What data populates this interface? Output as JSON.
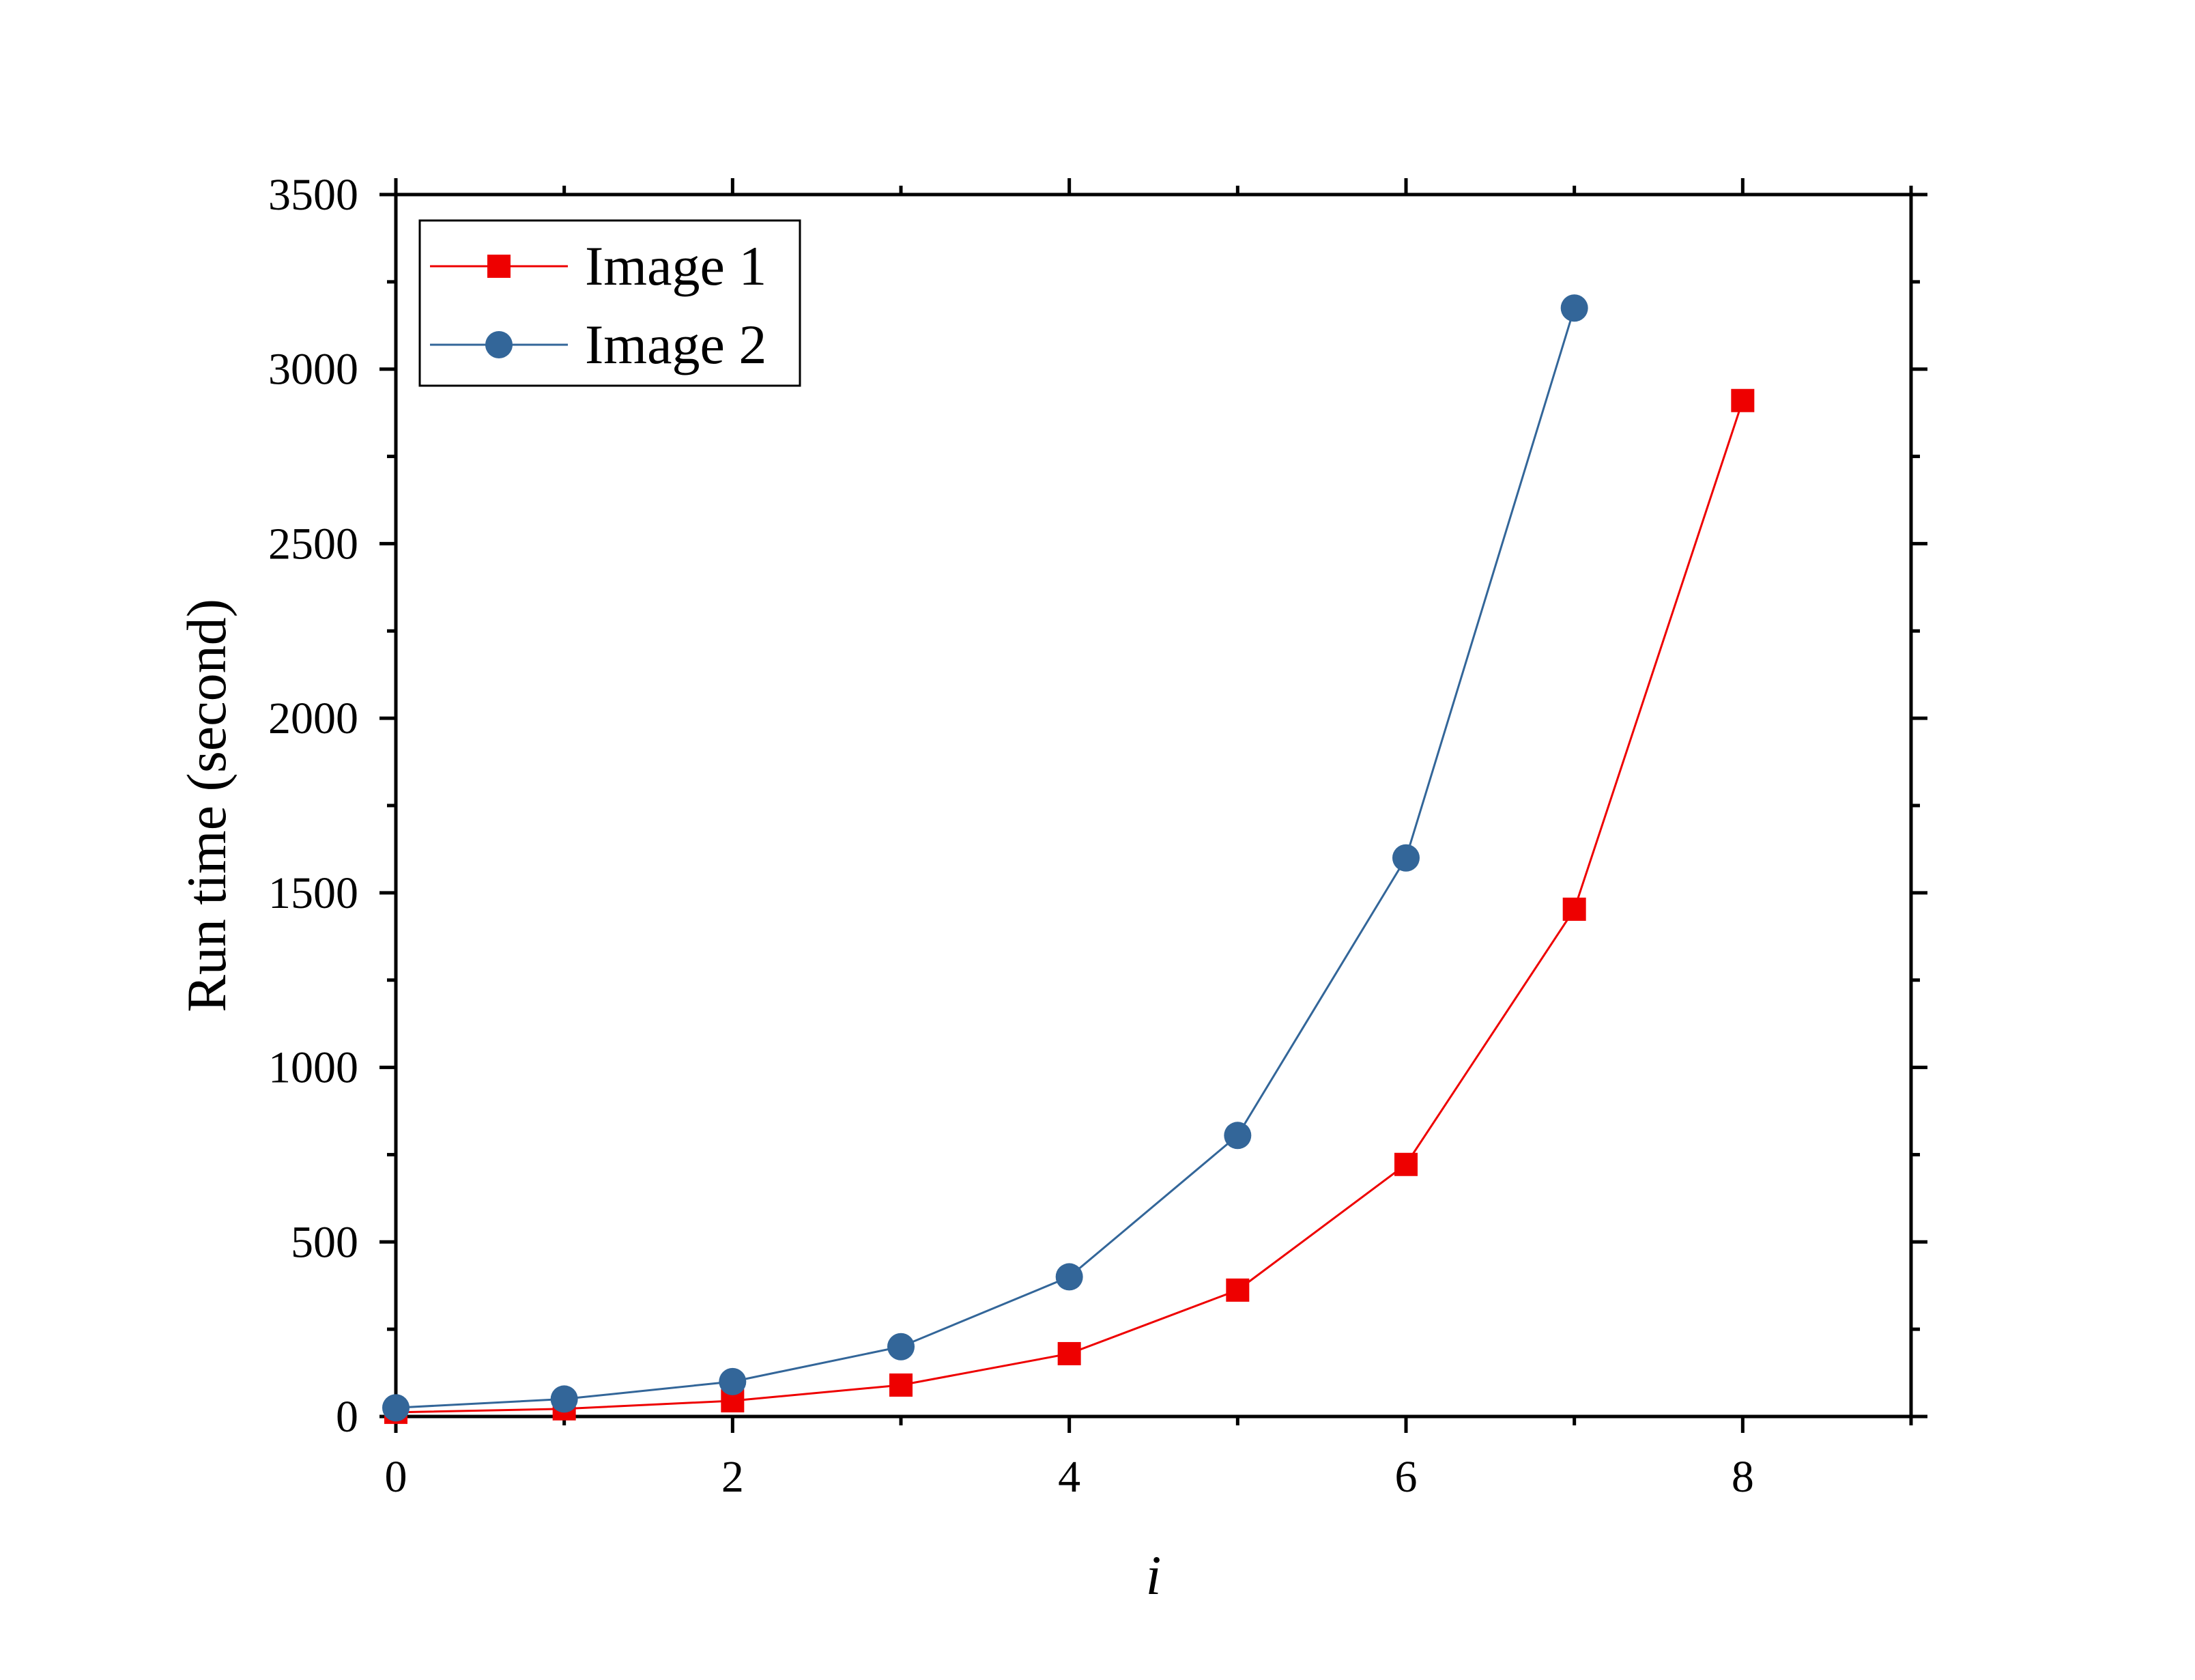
{
  "chart_data": {
    "type": "line",
    "xlabel": "i",
    "ylabel": "Run time (second)",
    "xlim": [
      0,
      9
    ],
    "ylim": [
      0,
      3500
    ],
    "xticks": [
      0,
      2,
      4,
      6,
      8
    ],
    "yticks": [
      0,
      500,
      1000,
      1500,
      2000,
      2500,
      3000,
      3500
    ],
    "grid": false,
    "legend": "top-left",
    "series": [
      {
        "name": "Image 1",
        "color": "#ee0000",
        "marker": "square",
        "x": [
          0,
          1,
          2,
          3,
          4,
          5,
          6,
          7,
          8
        ],
        "values": [
          12,
          22,
          45,
          90,
          180,
          362,
          722,
          1453,
          2910
        ]
      },
      {
        "name": "Image 2",
        "color": "#336699",
        "marker": "circle",
        "x": [
          0,
          1,
          2,
          3,
          4,
          5,
          6,
          7
        ],
        "values": [
          25,
          50,
          100,
          200,
          400,
          805,
          1600,
          3175
        ]
      }
    ]
  }
}
